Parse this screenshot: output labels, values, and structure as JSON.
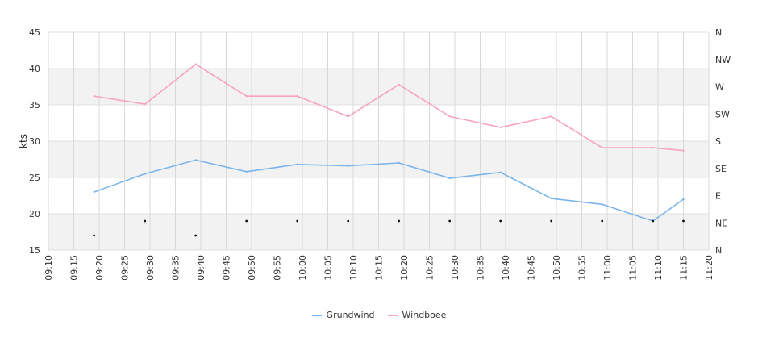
{
  "chart_data": {
    "type": "line",
    "title": "",
    "ylabel": "kts",
    "ylim": [
      15,
      45
    ],
    "yticks": [
      "15",
      "20",
      "25",
      "30",
      "35",
      "40",
      "45"
    ],
    "xlim": [
      "09:10",
      "11:20"
    ],
    "xticks": [
      "09:10",
      "09:15",
      "09:20",
      "09:25",
      "09:30",
      "09:35",
      "09:40",
      "09:45",
      "09:50",
      "09:55",
      "10:00",
      "10:05",
      "10:10",
      "10:15",
      "10:20",
      "10:25",
      "10:30",
      "10:35",
      "10:40",
      "10:45",
      "10:50",
      "10:55",
      "11:00",
      "11:05",
      "11:10",
      "11:15",
      "11:20"
    ],
    "y2ticks": [
      "N",
      "NE",
      "E",
      "SE",
      "S",
      "SW",
      "W",
      "NW",
      "N"
    ],
    "grid": true,
    "legend_position": "bottom",
    "x": [
      "09:19",
      "09:29",
      "09:39",
      "09:49",
      "09:59",
      "10:09",
      "10:19",
      "10:29",
      "10:39",
      "10:49",
      "10:59",
      "11:09",
      "11:15"
    ],
    "series": [
      {
        "name": "Grundwind",
        "color": "#7cb5ec",
        "values": [
          23,
          25.5,
          27.4,
          25.8,
          26.8,
          26.6,
          27.0,
          24.9,
          25.7,
          22.1,
          21.3,
          19.0,
          22.0
        ]
      },
      {
        "name": "Windboee",
        "color": "#f7a1c4",
        "values": [
          36.2,
          35.1,
          40.6,
          36.2,
          36.2,
          33.4,
          37.8,
          33.4,
          31.9,
          33.4,
          29.1,
          29.1,
          28.7
        ]
      }
    ],
    "direction_markers": [
      17,
      19,
      17,
      19,
      19,
      19,
      19,
      19,
      19,
      19,
      19,
      19,
      19
    ]
  }
}
